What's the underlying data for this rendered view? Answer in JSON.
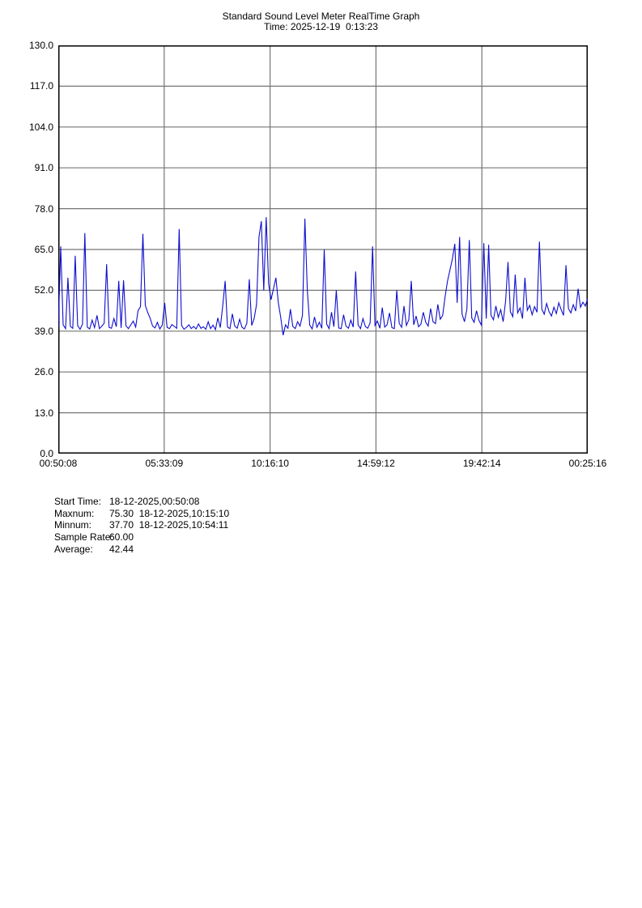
{
  "header": {
    "title": "Standard Sound Level Meter RealTime Graph",
    "subtitle": "Time: 2025-12-19  0:13:23"
  },
  "chart_data": {
    "type": "line",
    "title": "Standard Sound Level Meter RealTime Graph",
    "subtitle": "Time: 2025-12-19  0:13:23",
    "xlabel": "",
    "ylabel": "",
    "ylim": [
      0,
      130
    ],
    "yticks": [
      0,
      13,
      26,
      39,
      52,
      65,
      78,
      91,
      104,
      117,
      130
    ],
    "ytick_labels": [
      "0.0",
      "13.0",
      "26.0",
      "39.0",
      "52.0",
      "65.0",
      "78.0",
      "91.0",
      "104.0",
      "117.0",
      "130.0"
    ],
    "xtick_labels": [
      "00:50:08",
      "05:33:09",
      "10:16:10",
      "14:59:12",
      "19:42:14",
      "00:25:16"
    ],
    "grid": true,
    "legend": "none",
    "line_color": "#0e0ecd",
    "grid_color": "#757575",
    "border_color": "#000000",
    "values": [
      40.2,
      66.0,
      41.0,
      39.8,
      56.0,
      40.5,
      39.9,
      63.0,
      40.8,
      39.6,
      41.2,
      70.2,
      40.3,
      39.7,
      42.5,
      40.1,
      44.0,
      39.8,
      40.6,
      41.5,
      60.3,
      40.2,
      39.9,
      43.0,
      40.4,
      55.0,
      40.0,
      55.2,
      40.7,
      39.8,
      41.0,
      42.2,
      40.3,
      45.5,
      46.8,
      70.0,
      47.2,
      44.9,
      43.1,
      40.6,
      40.0,
      41.8,
      39.7,
      40.9,
      48.0,
      40.2,
      39.8,
      41.1,
      40.5,
      39.9,
      71.5,
      40.8,
      39.6,
      40.2,
      41.0,
      39.8,
      40.5,
      39.7,
      41.3,
      39.9,
      40.4,
      39.6,
      42.0,
      39.8,
      40.9,
      39.5,
      43.2,
      40.1,
      47.0,
      55.0,
      40.3,
      39.8,
      44.5,
      40.6,
      39.9,
      42.8,
      40.2,
      39.7,
      41.5,
      55.5,
      40.8,
      43.0,
      47.5,
      69.0,
      74.0,
      52.0,
      75.3,
      54.0,
      49.0,
      52.5,
      56.0,
      48.0,
      43.5,
      37.7,
      41.0,
      39.9,
      46.0,
      40.5,
      39.8,
      42.0,
      40.6,
      44.0,
      74.8,
      52.0,
      40.9,
      39.7,
      43.5,
      40.2,
      41.8,
      39.9,
      65.0,
      41.2,
      39.8,
      45.0,
      40.4,
      52.0,
      40.0,
      39.8,
      44.2,
      40.6,
      39.9,
      42.5,
      40.3,
      58.0,
      41.0,
      39.8,
      43.0,
      40.5,
      39.9,
      41.6,
      66.0,
      40.8,
      42.2,
      39.9,
      46.5,
      40.3,
      41.0,
      44.8,
      40.1,
      39.8,
      52.0,
      41.5,
      40.2,
      47.0,
      40.8,
      42.6,
      55.0,
      41.0,
      43.8,
      40.4,
      41.2,
      45.0,
      41.8,
      40.6,
      46.2,
      42.0,
      41.4,
      47.5,
      42.8,
      44.0,
      50.0,
      55.0,
      58.5,
      62.0,
      66.8,
      48.0,
      69.0,
      44.5,
      42.0,
      46.0,
      68.0,
      43.2,
      41.8,
      45.5,
      42.4,
      40.9,
      67.0,
      43.0,
      66.5,
      44.0,
      42.6,
      47.0,
      43.4,
      45.8,
      42.0,
      48.5,
      61.0,
      45.2,
      43.6,
      57.0,
      44.8,
      46.4,
      43.0,
      56.0,
      45.6,
      47.2,
      44.2,
      46.8,
      45.0,
      67.5,
      46.0,
      44.4,
      47.8,
      45.2,
      43.8,
      46.6,
      44.6,
      48.0,
      45.8,
      44.0,
      60.0,
      46.2,
      44.8,
      47.4,
      45.4,
      52.5,
      46.6,
      48.2,
      47.0,
      49.5
    ]
  },
  "stats": {
    "rows": [
      {
        "label": "Start Time:",
        "value": "18-12-2025,00:50:08"
      },
      {
        "label": "Maxnum:",
        "value": "75.30  18-12-2025,10:15:10"
      },
      {
        "label": "Minnum:",
        "value": "37.70  18-12-2025,10:54:11"
      },
      {
        "label": "Sample Rate:",
        "value": "60.00"
      },
      {
        "label": "Average:",
        "value": "42.44"
      }
    ]
  }
}
